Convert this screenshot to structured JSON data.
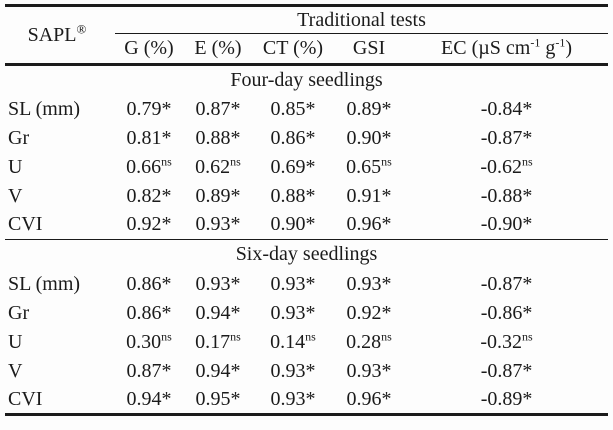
{
  "table": {
    "corner_label": "SAPL",
    "corner_sup": "®",
    "group_header": "Traditional tests",
    "columns": [
      "G (%)",
      "E (%)",
      "CT (%)",
      "GSI"
    ],
    "ec_header": {
      "prefix": "EC (µS cm",
      "sup1": "-1",
      "mid": " g",
      "sup2": "-1",
      "suffix": ")"
    },
    "sections": [
      {
        "title": "Four-day seedlings",
        "rows": [
          {
            "label": "SL (mm)",
            "cells": [
              {
                "v": "0.79",
                "s": "*"
              },
              {
                "v": "0.87",
                "s": "*"
              },
              {
                "v": "0.85",
                "s": "*"
              },
              {
                "v": "0.89",
                "s": "*"
              },
              {
                "v": "-0.84",
                "s": "*"
              }
            ]
          },
          {
            "label": "Gr",
            "cells": [
              {
                "v": "0.81",
                "s": "*"
              },
              {
                "v": "0.88",
                "s": "*"
              },
              {
                "v": "0.86",
                "s": "*"
              },
              {
                "v": "0.90",
                "s": "*"
              },
              {
                "v": "-0.87",
                "s": "*"
              }
            ]
          },
          {
            "label": "U",
            "cells": [
              {
                "v": "0.66",
                "s": "ns"
              },
              {
                "v": "0.62",
                "s": "ns"
              },
              {
                "v": "0.69",
                "s": "*"
              },
              {
                "v": "0.65",
                "s": "ns"
              },
              {
                "v": "-0.62",
                "s": "ns"
              }
            ]
          },
          {
            "label": "V",
            "cells": [
              {
                "v": "0.82",
                "s": "*"
              },
              {
                "v": "0.89",
                "s": "*"
              },
              {
                "v": "0.88",
                "s": "*"
              },
              {
                "v": "0.91",
                "s": "*"
              },
              {
                "v": "-0.88",
                "s": "*"
              }
            ]
          },
          {
            "label": "CVI",
            "cells": [
              {
                "v": "0.92",
                "s": "*"
              },
              {
                "v": "0.93",
                "s": "*"
              },
              {
                "v": "0.90",
                "s": "*"
              },
              {
                "v": "0.96",
                "s": "*"
              },
              {
                "v": "-0.90",
                "s": "*"
              }
            ]
          }
        ]
      },
      {
        "title": "Six-day seedlings",
        "rows": [
          {
            "label": "SL (mm)",
            "cells": [
              {
                "v": "0.86",
                "s": "*"
              },
              {
                "v": "0.93",
                "s": "*"
              },
              {
                "v": "0.93",
                "s": "*"
              },
              {
                "v": "0.93",
                "s": "*"
              },
              {
                "v": "-0.87",
                "s": "*"
              }
            ]
          },
          {
            "label": "Gr",
            "cells": [
              {
                "v": "0.86",
                "s": "*"
              },
              {
                "v": "0.94",
                "s": "*"
              },
              {
                "v": "0.93",
                "s": "*"
              },
              {
                "v": "0.92",
                "s": "*"
              },
              {
                "v": "-0.86",
                "s": "*"
              }
            ]
          },
          {
            "label": "U",
            "cells": [
              {
                "v": "0.30",
                "s": "ns"
              },
              {
                "v": "0.17",
                "s": "ns"
              },
              {
                "v": "0.14",
                "s": "ns"
              },
              {
                "v": "0.28",
                "s": "ns"
              },
              {
                "v": "-0.32",
                "s": "ns"
              }
            ]
          },
          {
            "label": "V",
            "cells": [
              {
                "v": "0.87",
                "s": "*"
              },
              {
                "v": "0.94",
                "s": "*"
              },
              {
                "v": "0.93",
                "s": "*"
              },
              {
                "v": "0.93",
                "s": "*"
              },
              {
                "v": "-0.87",
                "s": "*"
              }
            ]
          },
          {
            "label": "CVI",
            "cells": [
              {
                "v": "0.94",
                "s": "*"
              },
              {
                "v": "0.95",
                "s": "*"
              },
              {
                "v": "0.93",
                "s": "*"
              },
              {
                "v": "0.96",
                "s": "*"
              },
              {
                "v": "-0.89",
                "s": "*"
              }
            ]
          }
        ]
      }
    ]
  },
  "colors": {
    "text": "#1b1b1b",
    "rule": "#1b1b1b",
    "background": "#fdfdfd"
  }
}
